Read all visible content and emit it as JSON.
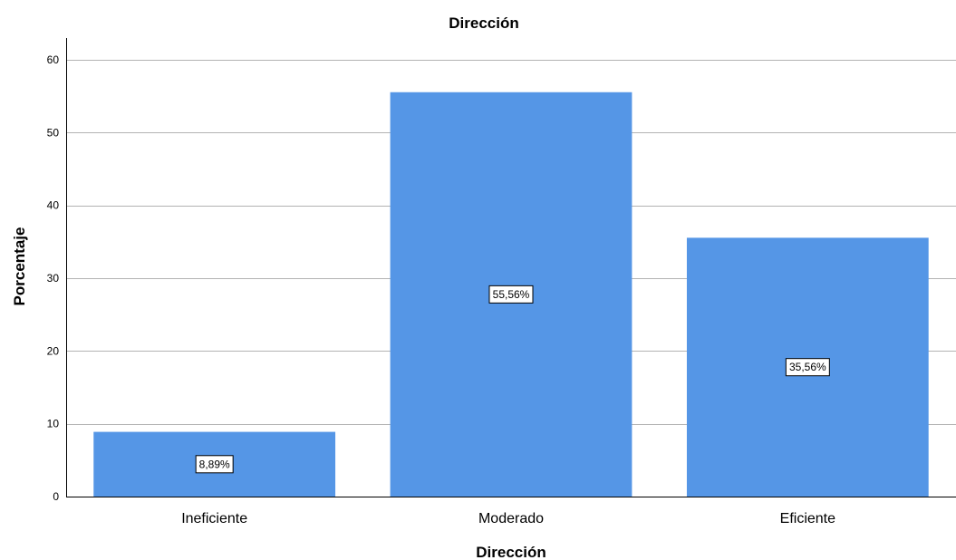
{
  "chart_data": {
    "type": "bar",
    "title": "Dirección",
    "xlabel": "Dirección",
    "ylabel": "Porcentaje",
    "categories": [
      "Ineficiente",
      "Moderado",
      "Eficiente"
    ],
    "values": [
      8.89,
      55.56,
      35.56
    ],
    "data_labels": [
      "8,89%",
      "55,56%",
      "35,56%"
    ],
    "ylim": [
      0,
      63
    ],
    "yticks": [
      0,
      10,
      20,
      30,
      40,
      50,
      60
    ],
    "ytick_labels": [
      "0",
      "10",
      "20",
      "30",
      "40",
      "50",
      "60"
    ],
    "grid": true,
    "legend": "none",
    "colors": {
      "bar": "#5596e6",
      "grid": "#b3b3b3",
      "axis": "#000000"
    }
  }
}
